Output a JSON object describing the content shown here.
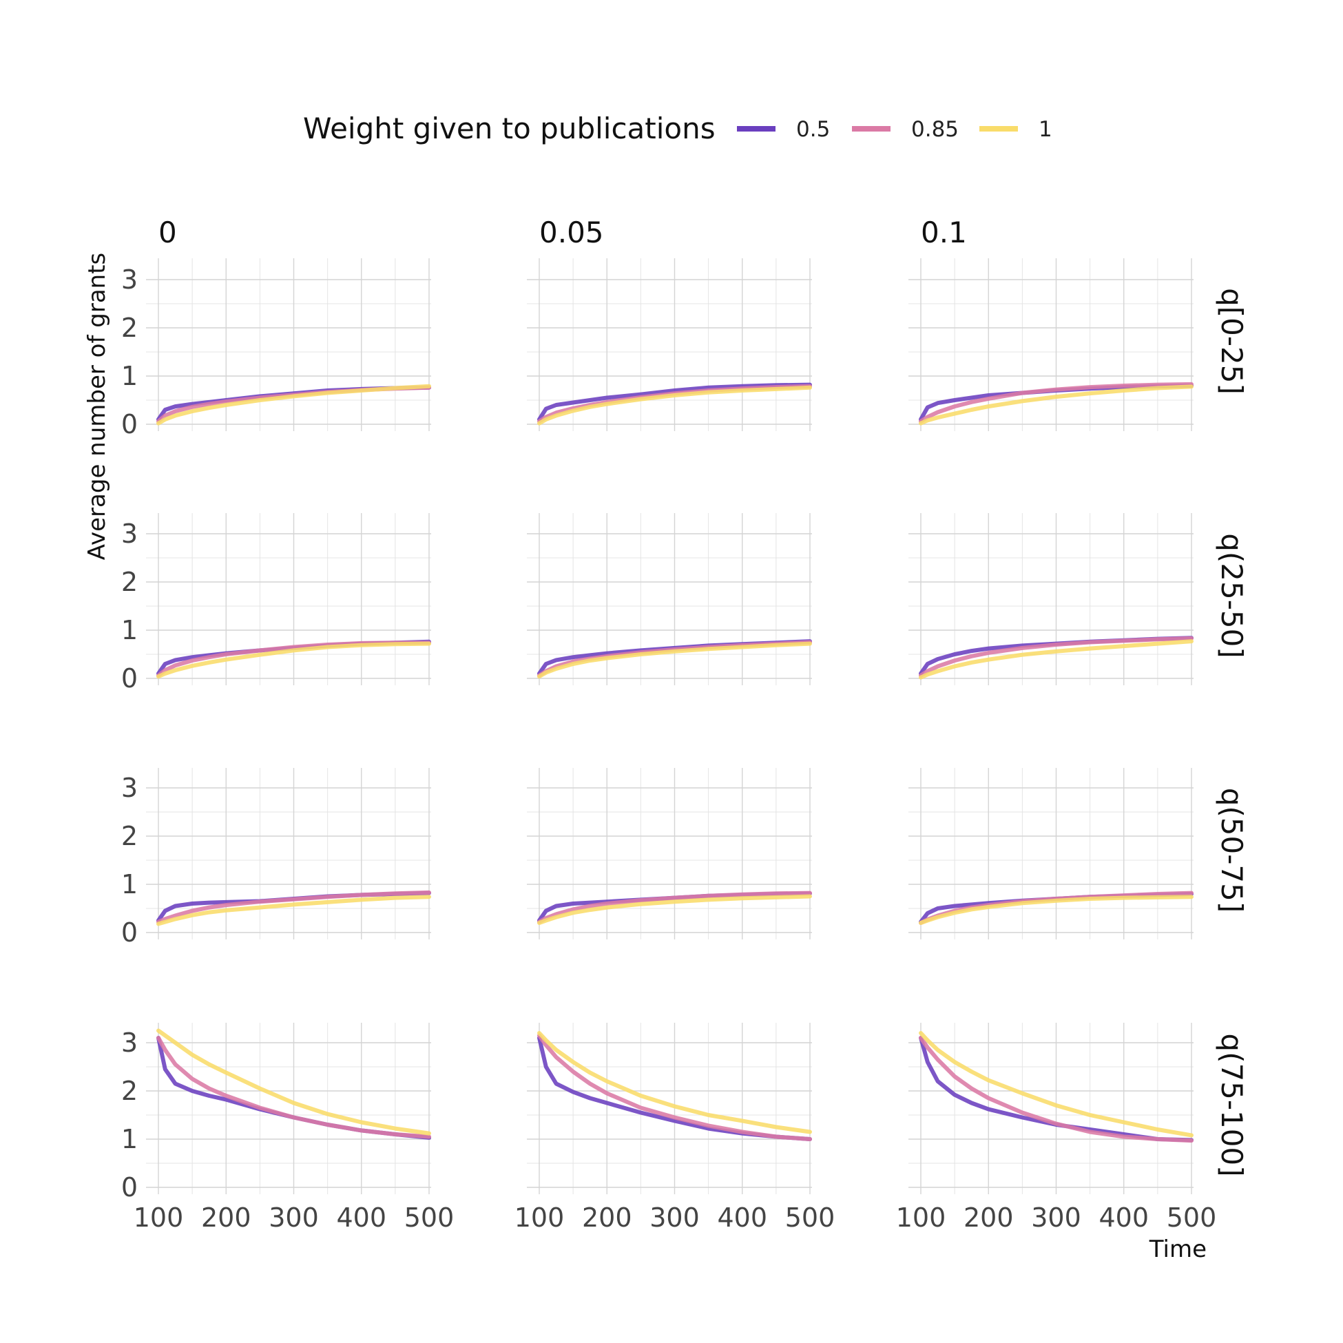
{
  "legend": {
    "title": "Weight given to publications",
    "entries": [
      {
        "label": "0.5",
        "color": "#6a3fbf"
      },
      {
        "label": "0.85",
        "color": "#db7aa5"
      },
      {
        "label": "1",
        "color": "#f9dc6a"
      }
    ]
  },
  "axes": {
    "xlabel": "Time",
    "ylabel": "Average number of grants",
    "x_ticks": [
      "100",
      "200",
      "300",
      "400",
      "500"
    ],
    "y_ticks": [
      "0",
      "1",
      "2",
      "3"
    ]
  },
  "chart_data": {
    "type": "line",
    "layout": "facet-grid",
    "xlim": [
      100,
      500
    ],
    "ylim": [
      0,
      3.3
    ],
    "grid": true,
    "legend_position": "top",
    "columns": [
      "0",
      "0.05",
      "0.1"
    ],
    "rows": [
      "q[0-25]",
      "q(25-50]",
      "q(50-75]",
      "q(75-100]"
    ],
    "x": [
      100,
      110,
      125,
      150,
      175,
      200,
      250,
      300,
      350,
      400,
      450,
      500
    ],
    "panels": [
      {
        "row": "q[0-25]",
        "col": "0",
        "series": [
          {
            "name": "0.5",
            "values": [
              0.1,
              0.3,
              0.37,
              0.42,
              0.46,
              0.5,
              0.58,
              0.64,
              0.7,
              0.73,
              0.75,
              0.76
            ]
          },
          {
            "name": "0.85",
            "values": [
              0.06,
              0.18,
              0.27,
              0.36,
              0.42,
              0.47,
              0.55,
              0.61,
              0.67,
              0.71,
              0.74,
              0.76
            ]
          },
          {
            "name": "1",
            "values": [
              0.02,
              0.1,
              0.18,
              0.27,
              0.34,
              0.4,
              0.5,
              0.58,
              0.65,
              0.7,
              0.75,
              0.79
            ]
          }
        ]
      },
      {
        "row": "q[0-25]",
        "col": "0.05",
        "series": [
          {
            "name": "0.5",
            "values": [
              0.1,
              0.32,
              0.4,
              0.45,
              0.5,
              0.55,
              0.62,
              0.7,
              0.76,
              0.79,
              0.81,
              0.82
            ]
          },
          {
            "name": "0.85",
            "values": [
              0.06,
              0.15,
              0.24,
              0.33,
              0.4,
              0.46,
              0.56,
              0.64,
              0.7,
              0.74,
              0.77,
              0.79
            ]
          },
          {
            "name": "1",
            "values": [
              0.02,
              0.1,
              0.18,
              0.28,
              0.36,
              0.42,
              0.52,
              0.6,
              0.66,
              0.7,
              0.73,
              0.76
            ]
          }
        ]
      },
      {
        "row": "q[0-25]",
        "col": "0.1",
        "series": [
          {
            "name": "0.5",
            "values": [
              0.1,
              0.35,
              0.44,
              0.5,
              0.55,
              0.6,
              0.65,
              0.7,
              0.74,
              0.77,
              0.79,
              0.8
            ]
          },
          {
            "name": "0.85",
            "values": [
              0.06,
              0.15,
              0.25,
              0.37,
              0.46,
              0.53,
              0.65,
              0.72,
              0.77,
              0.8,
              0.82,
              0.83
            ]
          },
          {
            "name": "1",
            "values": [
              0.02,
              0.08,
              0.14,
              0.22,
              0.3,
              0.37,
              0.48,
              0.57,
              0.64,
              0.7,
              0.75,
              0.78
            ]
          }
        ]
      },
      {
        "row": "q(25-50]",
        "col": "0",
        "series": [
          {
            "name": "0.5",
            "values": [
              0.1,
              0.3,
              0.38,
              0.44,
              0.48,
              0.52,
              0.58,
              0.63,
              0.68,
              0.72,
              0.74,
              0.76
            ]
          },
          {
            "name": "0.85",
            "values": [
              0.06,
              0.17,
              0.27,
              0.37,
              0.44,
              0.5,
              0.58,
              0.65,
              0.7,
              0.73,
              0.74,
              0.74
            ]
          },
          {
            "name": "1",
            "values": [
              0.04,
              0.1,
              0.17,
              0.26,
              0.33,
              0.39,
              0.49,
              0.58,
              0.65,
              0.69,
              0.71,
              0.72
            ]
          }
        ]
      },
      {
        "row": "q(25-50]",
        "col": "0.05",
        "series": [
          {
            "name": "0.5",
            "values": [
              0.1,
              0.3,
              0.38,
              0.44,
              0.48,
              0.52,
              0.58,
              0.63,
              0.68,
              0.71,
              0.74,
              0.77
            ]
          },
          {
            "name": "0.85",
            "values": [
              0.06,
              0.15,
              0.25,
              0.35,
              0.41,
              0.46,
              0.54,
              0.6,
              0.65,
              0.69,
              0.72,
              0.75
            ]
          },
          {
            "name": "1",
            "values": [
              0.04,
              0.12,
              0.2,
              0.3,
              0.37,
              0.42,
              0.5,
              0.56,
              0.61,
              0.65,
              0.69,
              0.72
            ]
          }
        ]
      },
      {
        "row": "q(25-50]",
        "col": "0.1",
        "series": [
          {
            "name": "0.5",
            "values": [
              0.1,
              0.3,
              0.4,
              0.5,
              0.57,
              0.62,
              0.68,
              0.72,
              0.76,
              0.79,
              0.82,
              0.84
            ]
          },
          {
            "name": "0.85",
            "values": [
              0.06,
              0.15,
              0.25,
              0.37,
              0.46,
              0.53,
              0.63,
              0.7,
              0.75,
              0.78,
              0.81,
              0.83
            ]
          },
          {
            "name": "1",
            "values": [
              0.02,
              0.08,
              0.15,
              0.25,
              0.33,
              0.39,
              0.49,
              0.56,
              0.62,
              0.67,
              0.72,
              0.77
            ]
          }
        ]
      },
      {
        "row": "q(50-75]",
        "col": "0",
        "series": [
          {
            "name": "0.5",
            "values": [
              0.25,
              0.45,
              0.55,
              0.6,
              0.62,
              0.63,
              0.65,
              0.7,
              0.75,
              0.78,
              0.8,
              0.82
            ]
          },
          {
            "name": "0.85",
            "values": [
              0.22,
              0.28,
              0.35,
              0.45,
              0.52,
              0.57,
              0.64,
              0.69,
              0.74,
              0.78,
              0.81,
              0.83
            ]
          },
          {
            "name": "1",
            "values": [
              0.18,
              0.22,
              0.28,
              0.36,
              0.42,
              0.46,
              0.52,
              0.58,
              0.63,
              0.68,
              0.72,
              0.74
            ]
          }
        ]
      },
      {
        "row": "q(50-75]",
        "col": "0.05",
        "series": [
          {
            "name": "0.5",
            "values": [
              0.25,
              0.45,
              0.55,
              0.6,
              0.62,
              0.64,
              0.68,
              0.72,
              0.76,
              0.78,
              0.8,
              0.81
            ]
          },
          {
            "name": "0.85",
            "values": [
              0.22,
              0.3,
              0.38,
              0.48,
              0.55,
              0.6,
              0.67,
              0.72,
              0.76,
              0.79,
              0.81,
              0.82
            ]
          },
          {
            "name": "1",
            "values": [
              0.2,
              0.25,
              0.32,
              0.41,
              0.47,
              0.52,
              0.59,
              0.64,
              0.68,
              0.71,
              0.73,
              0.75
            ]
          }
        ]
      },
      {
        "row": "q(50-75]",
        "col": "0.1",
        "series": [
          {
            "name": "0.5",
            "values": [
              0.22,
              0.4,
              0.5,
              0.55,
              0.58,
              0.61,
              0.66,
              0.7,
              0.74,
              0.76,
              0.78,
              0.8
            ]
          },
          {
            "name": "0.85",
            "values": [
              0.2,
              0.27,
              0.35,
              0.45,
              0.52,
              0.57,
              0.65,
              0.7,
              0.74,
              0.77,
              0.8,
              0.82
            ]
          },
          {
            "name": "1",
            "values": [
              0.2,
              0.25,
              0.32,
              0.41,
              0.48,
              0.53,
              0.61,
              0.66,
              0.7,
              0.72,
              0.73,
              0.74
            ]
          }
        ]
      },
      {
        "row": "q(75-100]",
        "col": "0",
        "series": [
          {
            "name": "0.5",
            "values": [
              3.1,
              2.45,
              2.15,
              2.0,
              1.9,
              1.82,
              1.62,
              1.45,
              1.3,
              1.18,
              1.1,
              1.03
            ]
          },
          {
            "name": "0.85",
            "values": [
              3.1,
              2.85,
              2.55,
              2.25,
              2.05,
              1.9,
              1.65,
              1.45,
              1.3,
              1.18,
              1.1,
              1.05
            ]
          },
          {
            "name": "1",
            "values": [
              3.25,
              3.15,
              3.0,
              2.75,
              2.55,
              2.38,
              2.05,
              1.75,
              1.52,
              1.35,
              1.22,
              1.12
            ]
          }
        ]
      },
      {
        "row": "q(75-100]",
        "col": "0.05",
        "series": [
          {
            "name": "0.5",
            "values": [
              3.1,
              2.5,
              2.15,
              1.98,
              1.85,
              1.75,
              1.55,
              1.38,
              1.22,
              1.12,
              1.05,
              1.0
            ]
          },
          {
            "name": "0.85",
            "values": [
              3.15,
              2.95,
              2.7,
              2.4,
              2.15,
              1.95,
              1.65,
              1.45,
              1.28,
              1.15,
              1.05,
              1.0
            ]
          },
          {
            "name": "1",
            "values": [
              3.2,
              3.05,
              2.85,
              2.6,
              2.38,
              2.2,
              1.9,
              1.68,
              1.5,
              1.38,
              1.25,
              1.15
            ]
          }
        ]
      },
      {
        "row": "q(75-100]",
        "col": "0.1",
        "series": [
          {
            "name": "0.5",
            "values": [
              3.1,
              2.6,
              2.2,
              1.92,
              1.75,
              1.62,
              1.45,
              1.3,
              1.2,
              1.1,
              1.0,
              0.98
            ]
          },
          {
            "name": "0.85",
            "values": [
              3.1,
              2.9,
              2.65,
              2.3,
              2.05,
              1.85,
              1.55,
              1.32,
              1.15,
              1.05,
              1.0,
              0.97
            ]
          },
          {
            "name": "1",
            "values": [
              3.2,
              3.05,
              2.85,
              2.6,
              2.4,
              2.22,
              1.95,
              1.7,
              1.5,
              1.35,
              1.2,
              1.08
            ]
          }
        ]
      }
    ]
  }
}
